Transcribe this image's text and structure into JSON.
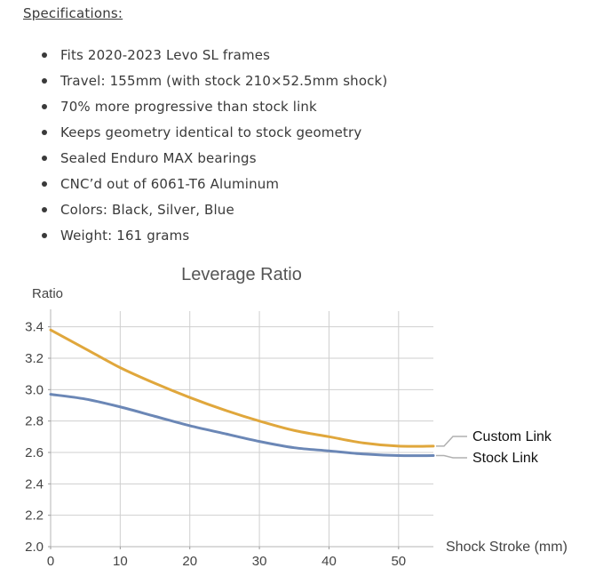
{
  "specs": {
    "heading": "Specifications:",
    "items": [
      "Fits 2020-2023 Levo SL frames",
      "Travel: 155mm (with stock 210×52.5mm shock)",
      "70% more progressive than stock link",
      "Keeps geometry identical to stock geometry",
      "Sealed Enduro MAX bearings",
      "CNC’d out of 6061-T6 Aluminum",
      "Colors: Black, Silver, Blue",
      "Weight: 161 grams"
    ]
  },
  "chart_data": {
    "type": "line",
    "title": "Leverage Ratio",
    "xlabel": "Shock Stroke (mm)",
    "ylabel": "Ratio",
    "xlim": [
      0,
      55
    ],
    "ylim": [
      2.0,
      3.5
    ],
    "x_ticks": [
      0,
      10,
      20,
      30,
      40,
      50
    ],
    "x_tick_labels": [
      "0",
      "10",
      "20",
      "30",
      "40",
      "50"
    ],
    "y_ticks": [
      2.0,
      2.2,
      2.4,
      2.6,
      2.8,
      3.0,
      3.2,
      3.4
    ],
    "y_tick_labels": [
      "2.0",
      "2.2",
      "2.4",
      "2.6",
      "2.8",
      "3.0",
      "3.2",
      "3.4"
    ],
    "grid": true,
    "series": [
      {
        "name": "Custom Link",
        "color": "#e0a73c",
        "x": [
          0,
          5,
          10,
          15,
          20,
          25,
          30,
          35,
          40,
          45,
          50,
          55
        ],
        "y": [
          3.38,
          3.26,
          3.14,
          3.04,
          2.95,
          2.87,
          2.8,
          2.74,
          2.7,
          2.66,
          2.64,
          2.64
        ]
      },
      {
        "name": "Stock Link",
        "color": "#6b87b6",
        "x": [
          0,
          5,
          10,
          15,
          20,
          25,
          30,
          35,
          40,
          45,
          50,
          55
        ],
        "y": [
          2.97,
          2.94,
          2.89,
          2.83,
          2.77,
          2.72,
          2.67,
          2.63,
          2.61,
          2.59,
          2.58,
          2.58
        ]
      }
    ]
  }
}
